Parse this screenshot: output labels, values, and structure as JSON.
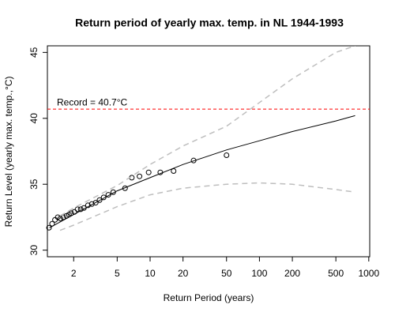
{
  "chart_data": {
    "type": "line",
    "title": "Return period of yearly max. temp. in NL 1944-1993",
    "xlabel": "Return Period (years)",
    "ylabel": "Return Level (yearly max. temp.,°C)",
    "xscale": "log",
    "xlim": [
      1.15,
      1020
    ],
    "ylim": [
      29.5,
      45.5
    ],
    "xticks": [
      2,
      5,
      10,
      20,
      50,
      100,
      200,
      500,
      1000
    ],
    "yticks": [
      30,
      35,
      40,
      45
    ],
    "series": [
      {
        "style": "points",
        "color": "#000000",
        "x": [
          1.19,
          1.27,
          1.35,
          1.43,
          1.51,
          1.61,
          1.72,
          1.81,
          1.9,
          2.03,
          2.17,
          2.32,
          2.48,
          2.7,
          2.93,
          3.18,
          3.45,
          3.76,
          4.15,
          4.6,
          5.9,
          6.8,
          8.0,
          9.7,
          12.4,
          16.4,
          25,
          50
        ],
        "values": [
          31.7,
          32.0,
          32.3,
          32.5,
          32.4,
          32.5,
          32.6,
          32.7,
          32.8,
          32.9,
          33.1,
          33.1,
          33.2,
          33.4,
          33.5,
          33.6,
          33.8,
          34.0,
          34.2,
          34.4,
          34.7,
          35.5,
          35.6,
          35.9,
          35.9,
          36.0,
          36.8,
          37.2
        ]
      },
      {
        "style": "solid",
        "color": "#000000",
        "x": [
          1.2,
          2,
          5,
          10,
          20,
          50,
          100,
          200,
          500,
          750
        ],
        "values": [
          31.7,
          32.7,
          34.5,
          35.5,
          36.5,
          37.6,
          38.3,
          39.0,
          39.8,
          40.2
        ]
      },
      {
        "style": "dashed",
        "color": "#bebebe",
        "x": [
          1.5,
          2,
          5,
          10,
          20,
          50,
          100,
          200,
          500,
          750
        ],
        "values": [
          32.6,
          33.2,
          34.9,
          36.5,
          37.9,
          39.4,
          41.2,
          43.0,
          45.0,
          45.5
        ]
      },
      {
        "style": "dashed",
        "color": "#bebebe",
        "x": [
          1.5,
          2,
          5,
          10,
          20,
          50,
          100,
          200,
          500,
          750
        ],
        "values": [
          31.5,
          31.9,
          33.3,
          34.2,
          34.7,
          35.0,
          35.1,
          35.0,
          34.6,
          34.4
        ]
      }
    ],
    "hline": {
      "value": 40.7,
      "label": "Record = 40.7°C",
      "color": "#ff0000"
    }
  }
}
